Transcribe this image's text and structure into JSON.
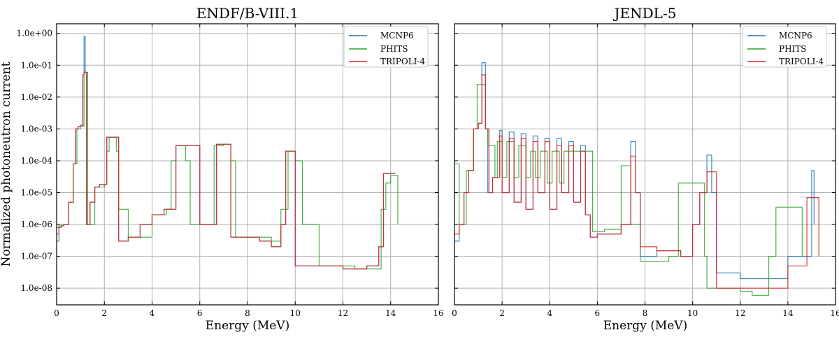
{
  "chart_data": [
    {
      "type": "line",
      "title": "ENDF/B-VIII.1",
      "xlabel": "Energy (MeV)",
      "ylabel": "Normalized photoneutron current",
      "xlim": [
        0,
        16
      ],
      "ylim": [
        3e-09,
        2.0
      ],
      "yscale": "log",
      "xticks": [
        0,
        2,
        4,
        6,
        8,
        10,
        12,
        14,
        16
      ],
      "yticks": [
        1e-08,
        1e-07,
        1e-06,
        1e-05,
        0.0001,
        0.001,
        0.01,
        0.1,
        1.0
      ],
      "ytick_labels": [
        "1.0e-08",
        "1.0e-07",
        "1.0e-06",
        "1.0e-05",
        "1.0e-04",
        "1.0e-03",
        "1.0e-02",
        "1.0e-01",
        "1.0e+00"
      ],
      "grid": true,
      "legend": "top-right",
      "series": [
        {
          "name": "MCNP6",
          "color": "#1f77b4",
          "x": [
            0.0,
            0.1,
            0.3,
            0.5,
            0.7,
            0.8,
            0.9,
            1.0,
            1.1,
            1.15,
            1.2,
            1.25,
            1.3,
            1.4,
            1.6,
            1.8,
            2.0,
            2.1,
            2.2,
            2.4,
            2.5,
            2.6,
            2.8,
            3.0,
            3.5,
            4.0,
            4.5,
            4.8,
            5.0,
            5.2,
            5.5,
            6.0,
            6.5,
            6.7,
            7.0,
            7.2,
            7.3,
            7.6,
            8.0,
            8.5,
            9.0,
            9.4,
            9.6,
            9.8,
            10.0,
            10.5,
            11.0,
            12.0,
            13.0,
            13.5,
            13.7,
            14.0,
            14.2
          ],
          "y": [
            3e-07,
            9e-07,
            1e-06,
            5e-06,
            8e-05,
            0.001,
            0.0012,
            0.0013,
            0.05,
            0.8,
            0.06,
            1e-06,
            1e-06,
            5e-06,
            1.5e-05,
            1.8e-05,
            1.8e-05,
            0.00055,
            0.00055,
            0.00055,
            0.00055,
            3e-07,
            3e-07,
            4e-07,
            1e-06,
            2e-06,
            3e-06,
            3e-06,
            0.0003,
            0.0003,
            0.0003,
            1e-06,
            1e-06,
            0.00033,
            0.00033,
            0.00033,
            4e-07,
            4e-07,
            4e-07,
            3e-07,
            2e-07,
            1e-06,
            0.0002,
            0.0002,
            5e-08,
            5e-08,
            5e-08,
            4e-08,
            5e-08,
            2e-07,
            4e-05,
            4e-05,
            4e-05
          ]
        },
        {
          "name": "PHITS",
          "color": "#2ca02c",
          "x": [
            0.0,
            0.2,
            0.5,
            0.7,
            0.85,
            1.0,
            1.15,
            1.25,
            1.3,
            1.6,
            2.0,
            2.1,
            2.2,
            2.4,
            2.5,
            2.6,
            3.0,
            4.0,
            4.6,
            4.8,
            5.0,
            5.2,
            5.4,
            5.6,
            6.4,
            6.6,
            7.0,
            7.3,
            7.5,
            9.0,
            9.4,
            9.7,
            10.0,
            10.3,
            11.0,
            12.5,
            13.6,
            13.8,
            14.0,
            14.3
          ],
          "y": [
            8e-07,
            1e-06,
            5e-06,
            8e-05,
            0.001,
            0.0012,
            0.06,
            0.06,
            1e-06,
            1.5e-05,
            1.8e-05,
            0.0002,
            0.00055,
            0.00055,
            0.0002,
            3e-06,
            4e-07,
            2e-06,
            3e-06,
            0.0001,
            0.0003,
            0.0003,
            0.0001,
            1e-06,
            1e-06,
            0.0003,
            0.00033,
            0.0001,
            4e-07,
            3e-07,
            3e-06,
            0.0002,
            0.0001,
            1e-06,
            5e-08,
            4e-08,
            3e-06,
            2e-05,
            3.5e-05,
            1e-06
          ]
        },
        {
          "name": "TRIPOLI-4",
          "color": "#d62728",
          "x": [
            0.0,
            0.1,
            0.3,
            0.5,
            0.7,
            0.8,
            0.9,
            1.0,
            1.1,
            1.15,
            1.2,
            1.25,
            1.3,
            1.4,
            1.6,
            1.8,
            2.0,
            2.1,
            2.2,
            2.4,
            2.5,
            2.6,
            2.8,
            3.0,
            3.5,
            4.0,
            4.5,
            4.8,
            5.0,
            5.2,
            5.5,
            6.0,
            6.5,
            6.7,
            7.0,
            7.2,
            7.3,
            7.6,
            8.0,
            8.5,
            9.0,
            9.4,
            9.6,
            9.8,
            10.0,
            10.5,
            11.0,
            12.0,
            13.0,
            13.5,
            13.7,
            14.0,
            14.2
          ],
          "y": [
            5e-07,
            9e-07,
            1e-06,
            5e-06,
            8e-05,
            0.001,
            0.0012,
            0.0013,
            0.05,
            0.06,
            0.06,
            1e-06,
            1e-06,
            5e-06,
            1.5e-05,
            1.8e-05,
            1.8e-05,
            0.00055,
            0.00055,
            0.00055,
            0.00055,
            3e-07,
            3e-07,
            4e-07,
            1e-06,
            2e-06,
            3e-06,
            3e-06,
            0.0003,
            0.0003,
            0.0003,
            1e-06,
            1e-06,
            0.00033,
            0.00033,
            0.00033,
            4e-07,
            4e-07,
            4e-07,
            3e-07,
            2e-07,
            1e-06,
            0.0002,
            0.0002,
            5e-08,
            5e-08,
            5e-08,
            4e-08,
            5e-08,
            2e-07,
            4e-05,
            4e-05,
            4e-05
          ]
        }
      ]
    },
    {
      "type": "line",
      "title": "JENDL-5",
      "xlabel": "Energy (MeV)",
      "ylabel": "",
      "xlim": [
        0,
        16
      ],
      "ylim": [
        3e-09,
        2.0
      ],
      "yscale": "log",
      "xticks": [
        0,
        2,
        4,
        6,
        8,
        10,
        12,
        14,
        16
      ],
      "grid": true,
      "legend": "top-right",
      "series": [
        {
          "name": "MCNP6",
          "color": "#1f77b4",
          "x": [
            0.0,
            0.2,
            0.4,
            0.6,
            0.8,
            1.0,
            1.15,
            1.3,
            1.4,
            1.6,
            1.9,
            2.0,
            2.3,
            2.5,
            2.8,
            3.0,
            3.3,
            3.5,
            3.8,
            4.0,
            4.3,
            4.5,
            4.8,
            5.0,
            5.3,
            5.5,
            5.7,
            6.0,
            7.0,
            7.4,
            7.6,
            7.8,
            8.5,
            9.5,
            10.0,
            10.3,
            10.6,
            10.8,
            11.0,
            12.0,
            14.0,
            14.8,
            15.0,
            15.1
          ],
          "y": [
            3e-07,
            1e-06,
            1e-05,
            5e-05,
            0.001,
            0.0015,
            0.12,
            0.001,
            1e-05,
            3e-05,
            0.0009,
            1e-05,
            0.0008,
            5e-06,
            0.0007,
            3e-06,
            0.0006,
            1e-05,
            0.0005,
            3e-06,
            0.0005,
            1e-05,
            0.0004,
            5e-06,
            0.0003,
            2e-06,
            4e-07,
            5e-07,
            1e-06,
            0.0004,
            1e-05,
            1e-07,
            1.5e-07,
            1e-07,
            1e-06,
            1e-05,
            0.00015,
            1e-05,
            3e-08,
            2e-08,
            1e-07,
            1e-07,
            5e-05,
            1e-06
          ]
        },
        {
          "name": "PHITS",
          "color": "#2ca02c",
          "x": [
            0.0,
            0.2,
            0.5,
            0.8,
            0.95,
            1.1,
            1.3,
            1.4,
            1.7,
            1.8,
            2.0,
            2.2,
            2.5,
            2.7,
            3.0,
            3.2,
            3.4,
            3.6,
            3.9,
            4.1,
            4.4,
            4.6,
            5.0,
            5.6,
            5.8,
            6.3,
            7.0,
            7.2,
            7.4,
            7.8,
            9.0,
            9.4,
            10.2,
            10.5,
            10.6,
            12.0,
            12.5,
            13.2,
            13.5,
            14.5,
            14.6
          ],
          "y": [
            8e-05,
            1e-06,
            5e-05,
            0.001,
            0.025,
            0.025,
            0.001,
            0.0003,
            3e-05,
            0.0004,
            3e-05,
            0.0004,
            3e-05,
            0.0003,
            3e-05,
            0.0002,
            3e-05,
            0.0002,
            2e-05,
            0.0002,
            2e-05,
            0.0002,
            0.0002,
            0.0002,
            6e-07,
            7e-07,
            7e-05,
            7e-05,
            1e-06,
            7e-08,
            1e-07,
            2e-05,
            2e-05,
            1e-07,
            1e-08,
            8e-09,
            6e-09,
            1e-07,
            3.5e-06,
            3.5e-06,
            1e-07
          ]
        },
        {
          "name": "TRIPOLI-4",
          "color": "#d62728",
          "x": [
            0.0,
            0.2,
            0.4,
            0.6,
            0.8,
            1.0,
            1.15,
            1.3,
            1.45,
            1.6,
            1.9,
            2.0,
            2.3,
            2.5,
            2.8,
            3.0,
            3.3,
            3.5,
            3.8,
            4.0,
            4.3,
            4.5,
            4.8,
            5.0,
            5.3,
            5.5,
            5.7,
            6.0,
            7.0,
            7.4,
            7.6,
            7.8,
            8.5,
            9.5,
            10.0,
            10.3,
            10.6,
            10.9,
            11.0,
            12.0,
            14.0,
            14.8,
            15.2,
            15.3
          ],
          "y": [
            5e-07,
            1e-06,
            1e-05,
            5e-05,
            0.001,
            0.0015,
            0.05,
            0.001,
            1e-05,
            3e-05,
            0.0006,
            1e-05,
            0.0005,
            5e-06,
            0.0005,
            3e-06,
            0.0004,
            1e-05,
            0.0004,
            3e-06,
            0.0003,
            1e-05,
            0.0003,
            5e-06,
            0.0002,
            2e-06,
            4e-07,
            5e-07,
            1e-06,
            0.00014,
            1e-05,
            2e-07,
            1.5e-07,
            1e-07,
            1e-06,
            1e-05,
            4.5e-05,
            4.5e-05,
            1e-08,
            1e-08,
            5e-08,
            7e-06,
            7e-06,
            1e-07
          ]
        }
      ]
    }
  ]
}
